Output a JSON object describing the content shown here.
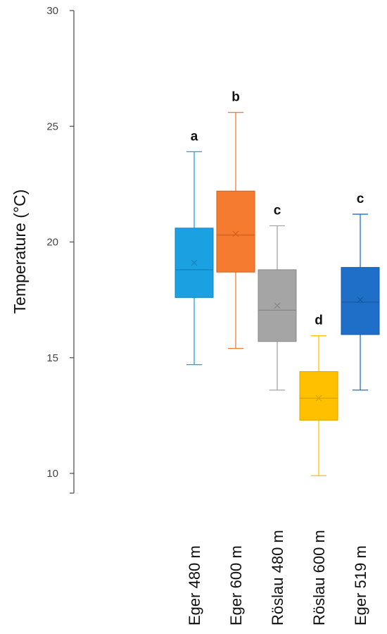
{
  "chart_data": {
    "type": "box",
    "ylabel": "Temperature (°C)",
    "ylim": [
      10,
      30
    ],
    "yticks": [
      10,
      15,
      20,
      25,
      30
    ],
    "grid": false,
    "legend": "none",
    "categories": [
      "Eger 480 m",
      "Eger 600 m",
      "Röslau 480 m",
      "Röslau 600 m",
      "Eger 519 m"
    ],
    "boxes": [
      {
        "category": "Eger 480 m",
        "min": 14.7,
        "q1": 17.6,
        "median": 18.8,
        "mean": 19.1,
        "q3": 20.6,
        "max": 23.9,
        "letter": "a",
        "color": "#1BA1E2",
        "edge": "#1384BC"
      },
      {
        "category": "Eger 600 m",
        "min": 15.4,
        "q1": 18.7,
        "median": 20.3,
        "mean": 20.35,
        "q3": 22.2,
        "max": 25.6,
        "letter": "b",
        "color": "#F47B30",
        "edge": "#D0601C"
      },
      {
        "category": "Röslau 480 m",
        "min": 13.6,
        "q1": 15.7,
        "median": 17.05,
        "mean": 17.25,
        "q3": 18.8,
        "max": 20.7,
        "letter": "c",
        "color": "#A5A5A5",
        "edge": "#888888"
      },
      {
        "category": "Röslau 600 m",
        "min": 9.9,
        "q1": 12.3,
        "median": 13.25,
        "mean": 13.25,
        "q3": 14.4,
        "max": 15.95,
        "letter": "d",
        "color": "#FFC000",
        "edge": "#D9A300"
      },
      {
        "category": "Eger 519 m",
        "min": 13.6,
        "q1": 16.0,
        "median": 17.4,
        "mean": 17.5,
        "q3": 18.9,
        "max": 21.2,
        "letter": "c",
        "color": "#1F6FC9",
        "edge": "#17589F"
      }
    ]
  }
}
